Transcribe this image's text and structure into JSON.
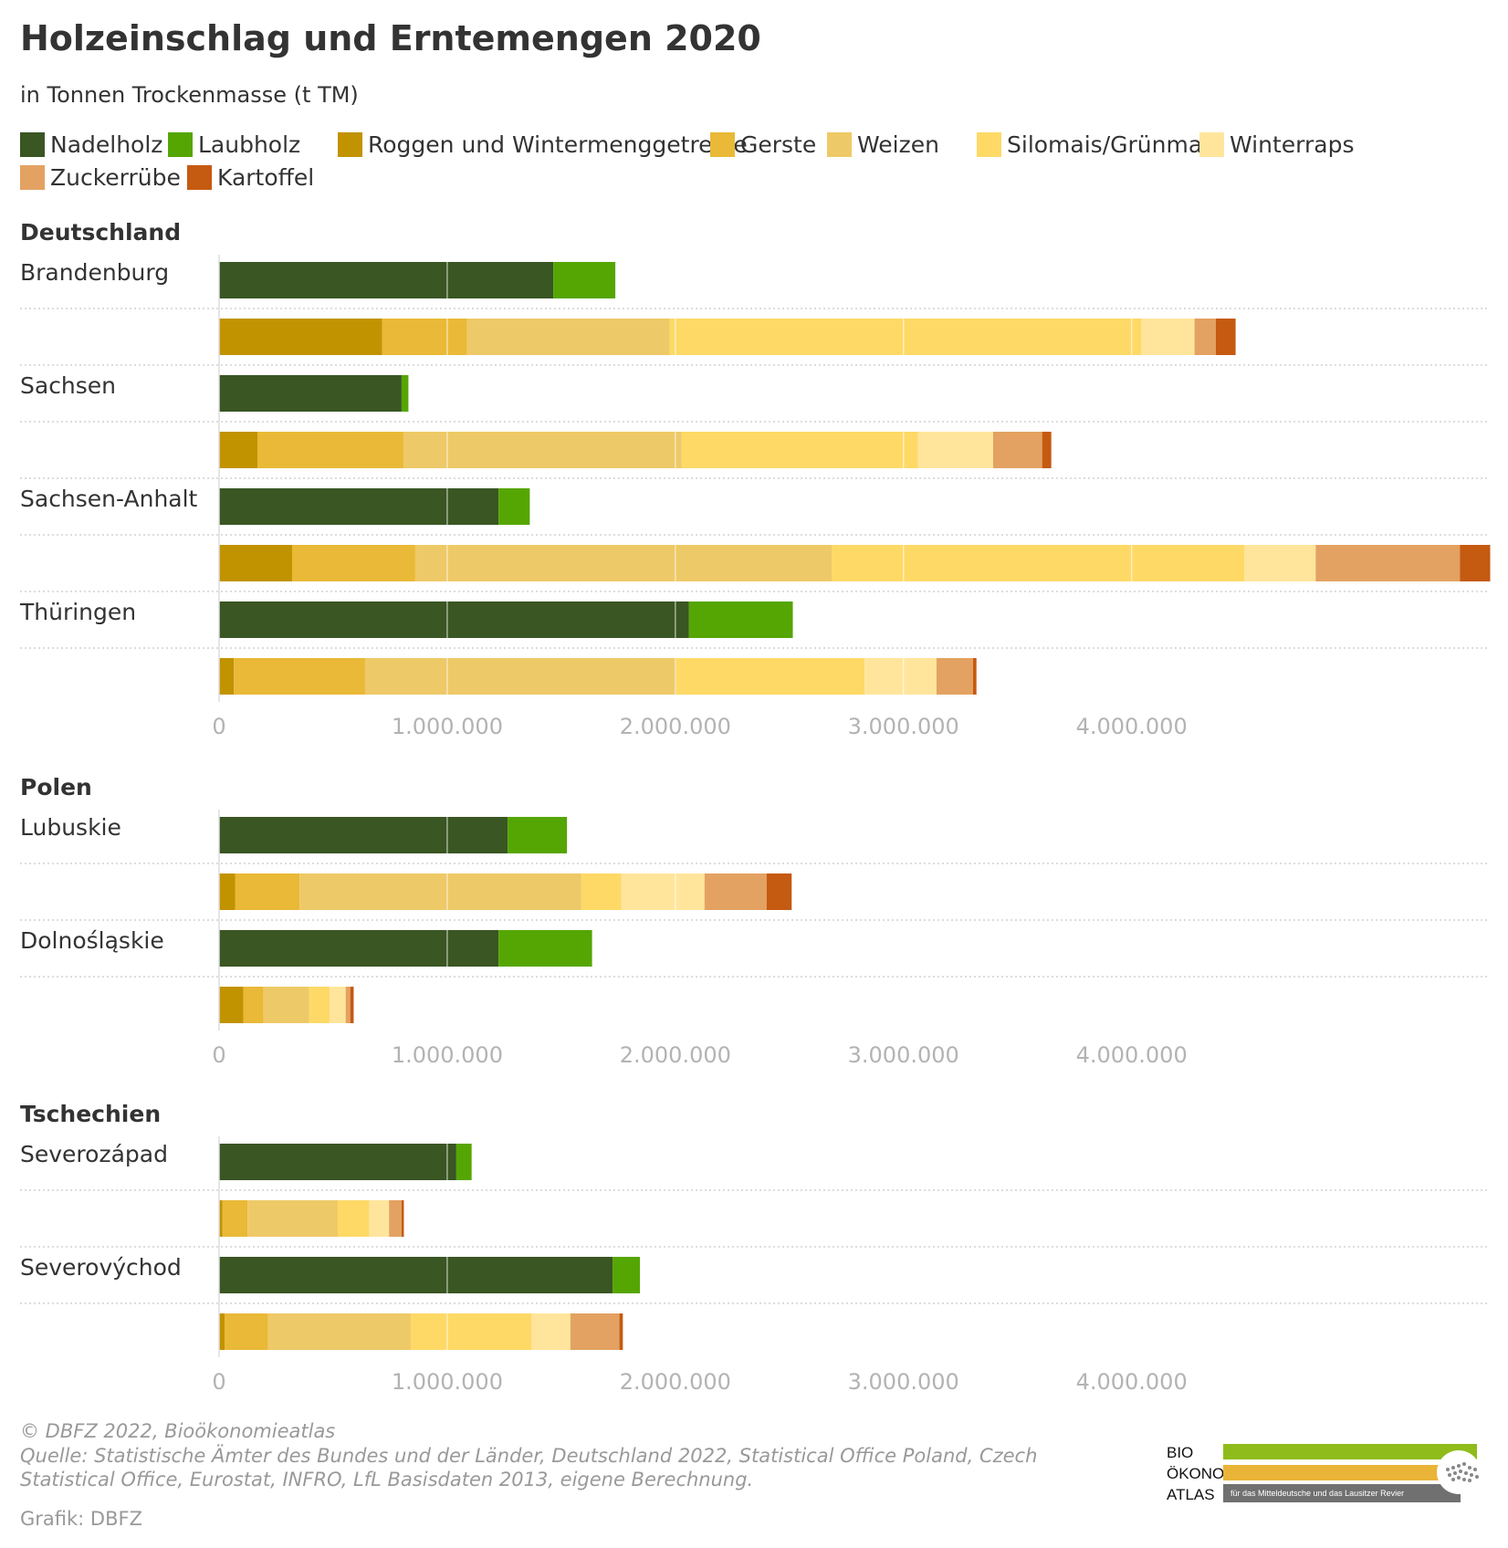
{
  "title": "Holzeinschlag und Erntemengen 2020",
  "subtitle": "in Tonnen Trockenmasse (t TM)",
  "footer": {
    "copyright": "© DBFZ 2022, Bioökonomieatlas",
    "source_line1": "Quelle: Statistische Ämter des Bundes und der Länder, Deutschland 2022, Statistical Office Poland, Czech",
    "source_line2": "Statistical Office, Eurostat, INFRO, LfL Basisdaten 2013, eigene Berechnung.",
    "credit": "Grafik: DBFZ"
  },
  "logo": {
    "line1": "BIO",
    "line2": "ÖKONOMIE",
    "line3": "ATLAS",
    "tagline": "für das Mitteldeutsche und das Lausitzer Revier",
    "colors": [
      "#8fbc1a",
      "#e9b437",
      "#707070"
    ]
  },
  "chart_data": {
    "type": "bar",
    "orientation": "horizontal",
    "stacked": true,
    "title": "Holzeinschlag und Erntemengen 2020",
    "subtitle": "in Tonnen Trockenmasse (t TM)",
    "xlim": [
      0,
      5570000
    ],
    "xticks": [
      0,
      1000000,
      2000000,
      3000000,
      4000000
    ],
    "xtick_labels": [
      "0",
      "1.000.000",
      "2.000.000",
      "3.000.000",
      "4.000.000"
    ],
    "gridlines": true,
    "legend_position": "top",
    "categories": [
      {
        "name": "Nadelholz",
        "color": "#3a5623"
      },
      {
        "name": "Laubholz",
        "color": "#55a603"
      },
      {
        "name": "Roggen und Wintermenggetreide",
        "color": "#c19300"
      },
      {
        "name": "Gerste",
        "color": "#e9b937"
      },
      {
        "name": "Weizen",
        "color": "#eec967"
      },
      {
        "name": "Silomais/Grünmais",
        "color": "#fed966"
      },
      {
        "name": "Winterraps",
        "color": "#ffe59c"
      },
      {
        "name": "Zuckerrübe",
        "color": "#e3a261"
      },
      {
        "name": "Kartoffel",
        "color": "#c55a11"
      }
    ],
    "groups": [
      {
        "name": "Deutschland",
        "regions": [
          {
            "name": "Brandenburg",
            "wood": [
              1465000,
              272000
            ],
            "crops": [
              715000,
              372000,
              888000,
              2068000,
              233000,
              93000,
              87000
            ]
          },
          {
            "name": "Sachsen",
            "wood": [
              800000,
              30000
            ],
            "crops": [
              168000,
              640000,
              1220000,
              1035000,
              330000,
              215000,
              40000
            ]
          },
          {
            "name": "Sachsen-Anhalt",
            "wood": [
              1225000,
              137000
            ],
            "crops": [
              320000,
              540000,
              1825000,
              1810000,
              312000,
              632000,
              133000
            ]
          },
          {
            "name": "Thüringen",
            "wood": [
              2060000,
              455000
            ],
            "crops": [
              65000,
              575000,
              1365000,
              825000,
              315000,
              160000,
              15000
            ]
          }
        ]
      },
      {
        "name": "Polen",
        "regions": [
          {
            "name": "Lubuskie",
            "wood": [
              1265000,
              260000
            ],
            "crops": [
              70000,
              283000,
              1235000,
              175000,
              365000,
              272000,
              110000
            ]
          },
          {
            "name": "Dolnośląskie",
            "wood": [
              1225000,
              410000
            ],
            "crops": [
              107000,
              88000,
              200000,
              90000,
              70000,
              20000,
              15000
            ]
          }
        ]
      },
      {
        "name": "Tschechien",
        "regions": [
          {
            "name": "Severozápad",
            "wood": [
              1040000,
              67000
            ],
            "crops": [
              15000,
              110000,
              395000,
              138000,
              87000,
              55000,
              10000
            ]
          },
          {
            "name": "Severovýchod",
            "wood": [
              1725000,
              120000
            ],
            "crops": [
              25000,
              190000,
              625000,
              530000,
              170000,
              215000,
              15000
            ]
          }
        ]
      }
    ]
  }
}
